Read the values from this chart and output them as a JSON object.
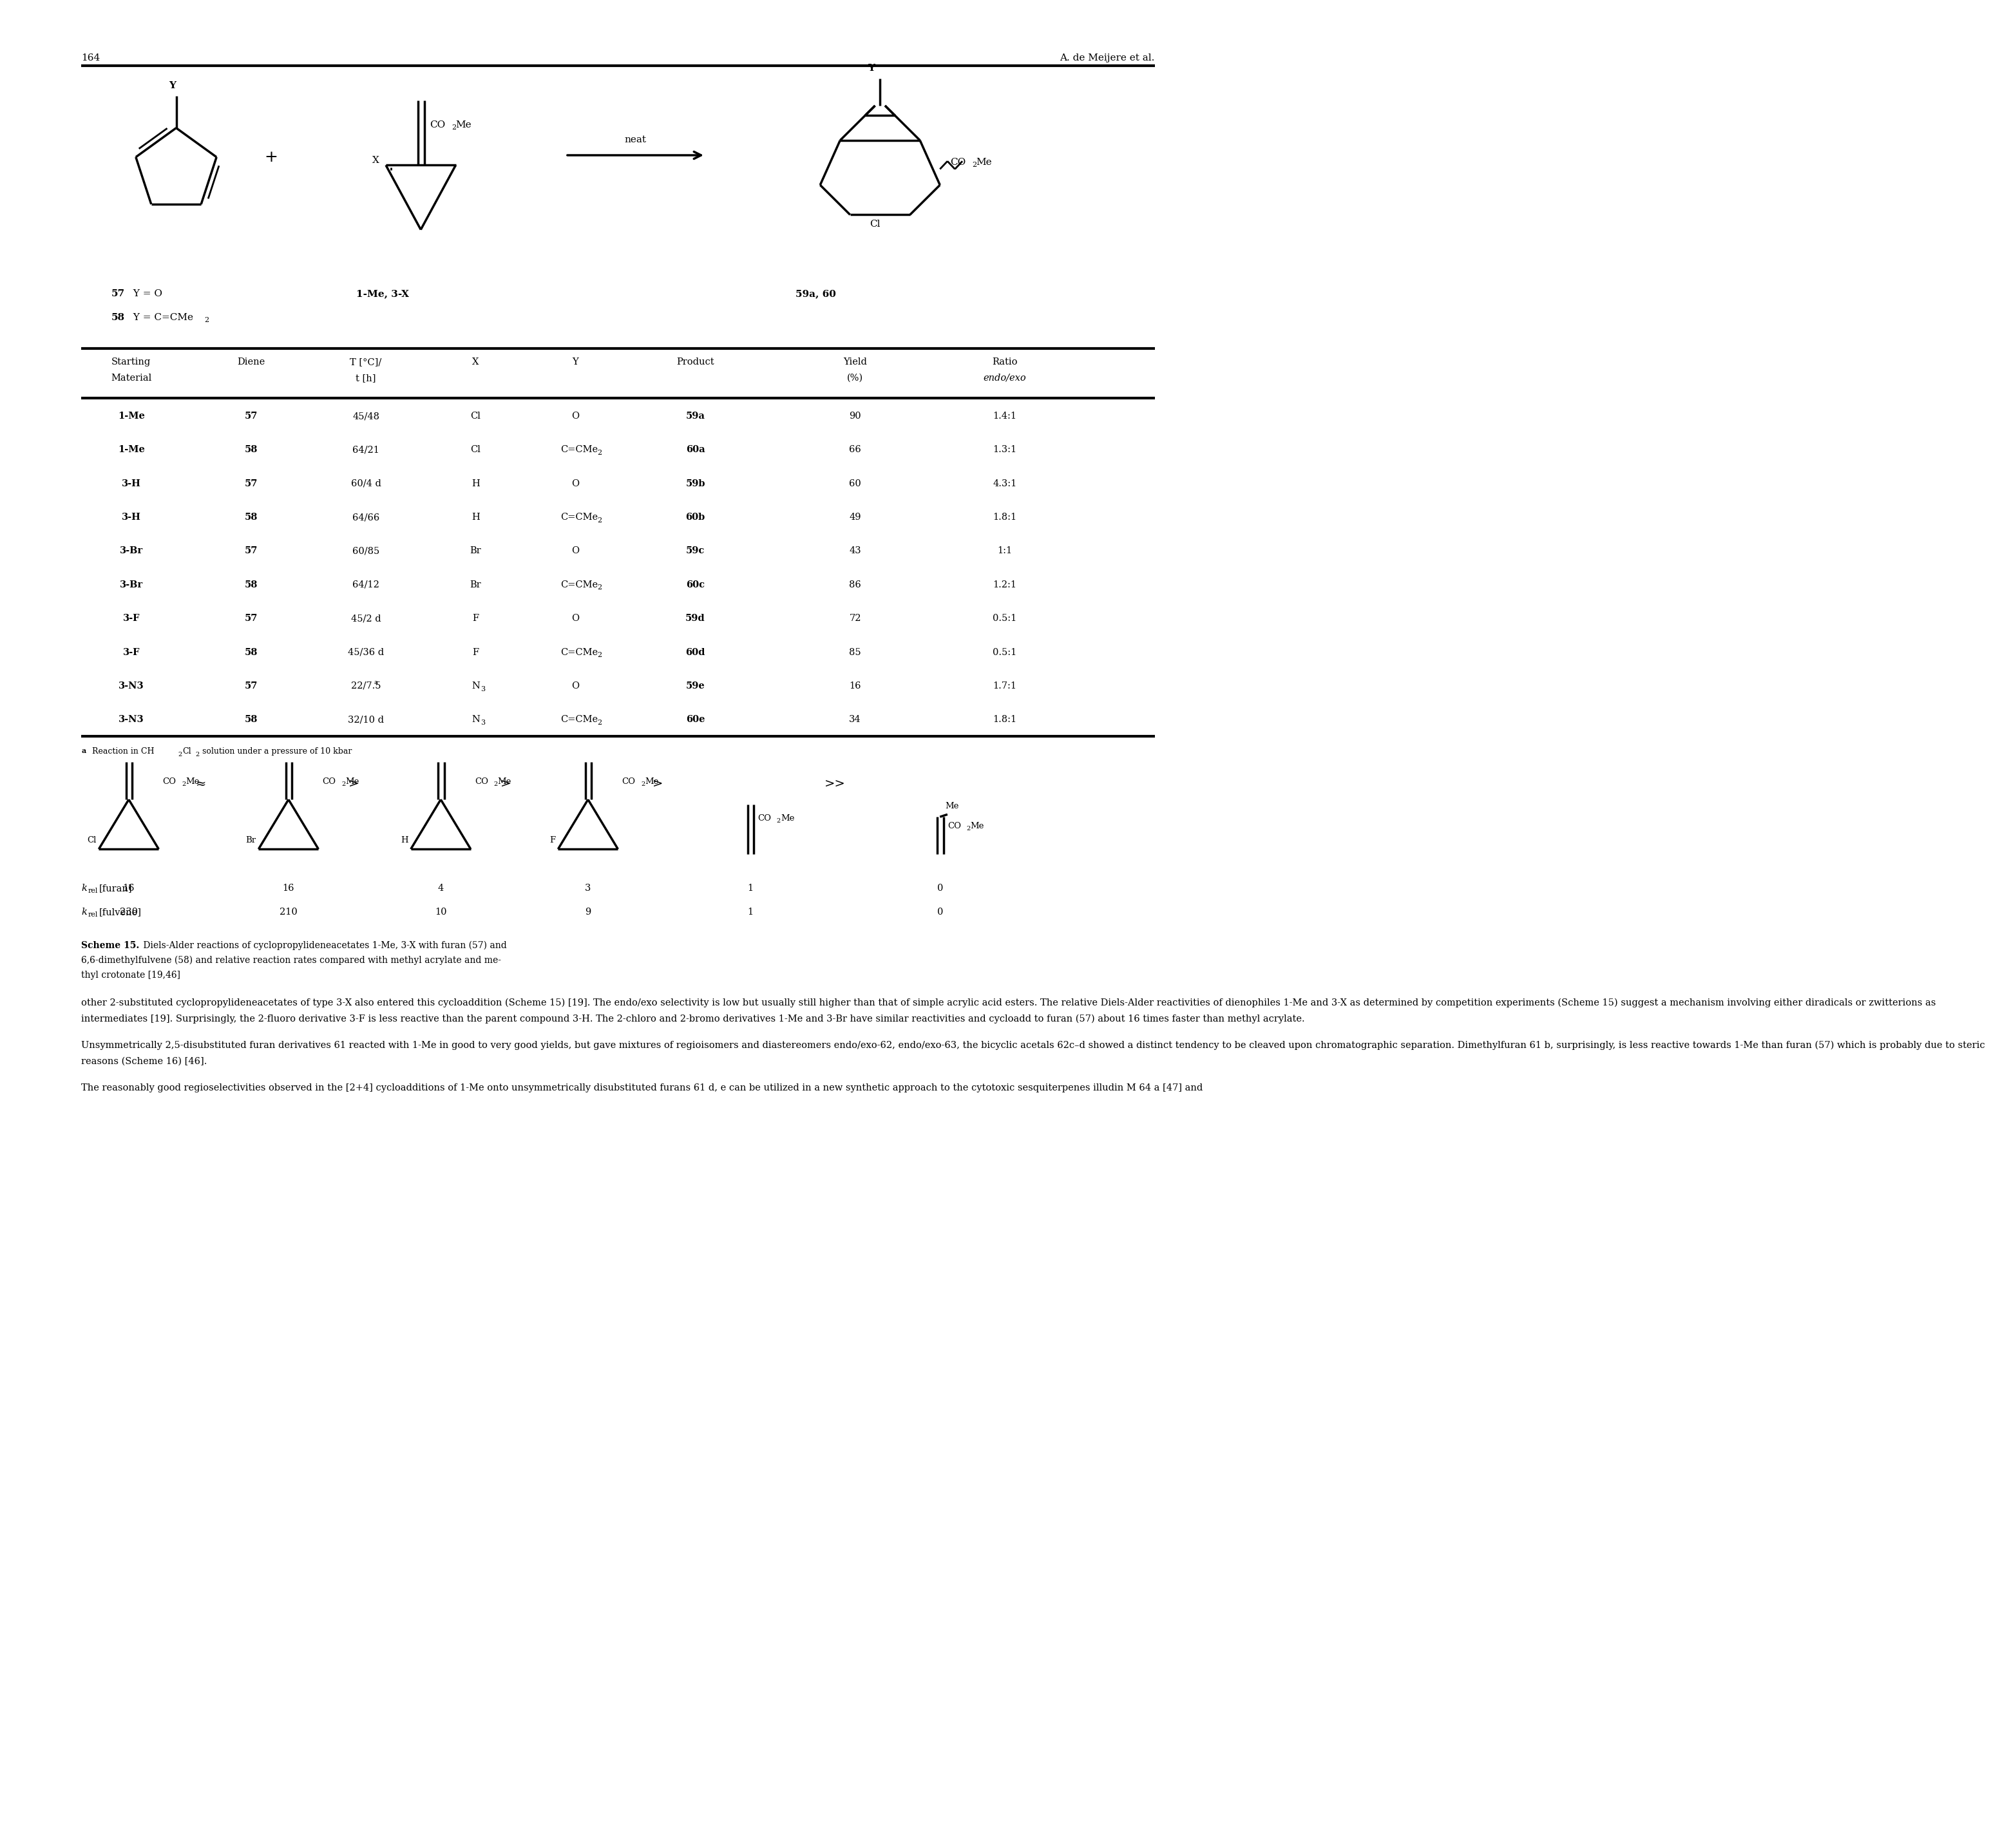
{
  "page_number": "164",
  "page_header_right": "A. de Meijere et al.",
  "table_headers_line1": [
    "Starting",
    "Diene",
    "T [°C]/",
    "X",
    "Y",
    "Product",
    "Yield",
    "Ratio"
  ],
  "table_headers_line2": [
    "Material",
    "",
    "t [h]",
    "",
    "",
    "",
    "(%)",
    "endo/exo"
  ],
  "table_data": [
    [
      "1-Me",
      "57",
      "45/48",
      "Cl",
      "O",
      "59a",
      "90",
      "1.4:1"
    ],
    [
      "1-Me",
      "58",
      "64/21",
      "Cl",
      "C=CMe2",
      "60a",
      "66",
      "1.3:1"
    ],
    [
      "3-H",
      "57",
      "60/4 d",
      "H",
      "O",
      "59b",
      "60",
      "4.3:1"
    ],
    [
      "3-H",
      "58",
      "64/66",
      "H",
      "C=CMe2",
      "60b",
      "49",
      "1.8:1"
    ],
    [
      "3-Br",
      "57",
      "60/85",
      "Br",
      "O",
      "59c",
      "43",
      "1:1"
    ],
    [
      "3-Br",
      "58",
      "64/12",
      "Br",
      "C=CMe2",
      "60c",
      "86",
      "1.2:1"
    ],
    [
      "3-F",
      "57",
      "45/2 d",
      "F",
      "O",
      "59d",
      "72",
      "0.5:1"
    ],
    [
      "3-F",
      "58",
      "45/36 d",
      "F",
      "C=CMe2",
      "60d",
      "85",
      "0.5:1"
    ],
    [
      "3-N3",
      "57",
      "22/7.5a",
      "N3",
      "O",
      "59e",
      "16",
      "1.7:1"
    ],
    [
      "3-N3",
      "58",
      "32/10 d",
      "N3",
      "C=CMe2",
      "60e",
      "34",
      "1.8:1"
    ]
  ],
  "krel_furan": [
    "16",
    "16",
    "4",
    "3",
    "1",
    "0"
  ],
  "krel_fulvene": [
    "230",
    "210",
    "10",
    "9",
    "1",
    "0"
  ],
  "body_text_p1_indent": "    other 2-substituted cyclopropylideneacetates of type 3-X also entered this cycloaddition (Scheme 15) [19]. The endo/exo selectivity is low but usually still higher than that of simple acrylic acid esters. The relative Diels-Alder reactivities of dienophiles 1-Me and 3-X as determined by competition experiments (Scheme 15) suggest a mechanism involving either diradicals or zwitterions as intermediates [19]. Surprisingly, the 2-fluoro derivative 3-F is less reactive than the parent compound 3-H. The 2-chloro and 2-bromo derivatives 1-Me and 3-Br have similar reactivities and cycloadd to furan (57) about 16 times faster than methyl acrylate.",
  "body_text_p2_indent": "    Unsymmetrically 2,5-disubstituted furan derivatives 61 reacted with 1-Me in good to very good yields, but gave mixtures of regioisomers and diastereomers endo/exo-62, endo/exo-63, the bicyclic acetals 62c–d showed a distinct tendency to be cleaved upon chromatographic separation. Dimethylfuran 61 b, surprisingly, is less reactive towards 1-Me than furan (57) which is probably due to steric reasons (Scheme 16) [46].",
  "body_text_p3_indent": "    The reasonably good regioselectivities observed in the [2+4] cycloadditions of 1-Me onto unsymmetrically disubstituted furans 61 d, e can be utilized in a new synthetic approach to the cytotoxic sesquiterpenes illudin M 64 a [47] and",
  "bg_color": "#ffffff"
}
